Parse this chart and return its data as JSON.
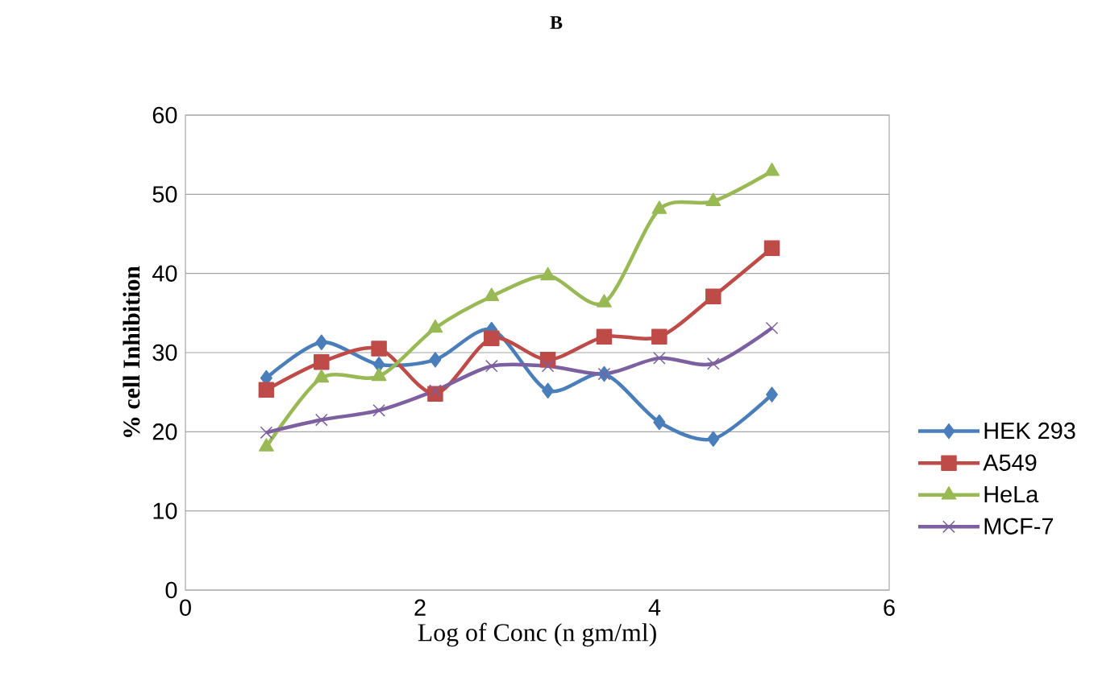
{
  "chart_data": {
    "type": "line",
    "title": "B",
    "xlabel": "Log of Conc (n gm/ml)",
    "ylabel": "% cell Inhibition",
    "x": [
      0.69,
      1.16,
      1.65,
      2.13,
      2.61,
      3.09,
      3.57,
      4.04,
      4.5,
      5.0
    ],
    "series": [
      {
        "name": "HEK 293",
        "color": "#4a7ebb",
        "marker": "diamond",
        "values": [
          26.8,
          31.3,
          28.5,
          29.1,
          32.9,
          25.2,
          27.3,
          21.2,
          19.1,
          24.7
        ]
      },
      {
        "name": "A549",
        "color": "#be4b48",
        "marker": "square",
        "values": [
          25.3,
          28.8,
          30.5,
          24.8,
          31.8,
          29.1,
          32.0,
          32.0,
          37.1,
          43.2
        ]
      },
      {
        "name": "HeLa",
        "color": "#98b954",
        "marker": "triangle",
        "values": [
          18.1,
          26.8,
          27.0,
          33.1,
          37.1,
          39.7,
          36.3,
          48.1,
          49.1,
          52.9
        ]
      },
      {
        "name": "MCF-7",
        "color": "#7d60a0",
        "marker": "cross",
        "values": [
          19.9,
          21.5,
          22.7,
          25.2,
          28.3,
          28.3,
          27.3,
          29.3,
          28.6,
          33.1
        ]
      }
    ],
    "xlim": [
      0,
      6
    ],
    "xticks": [
      0,
      2,
      4,
      6
    ],
    "ylim": [
      0,
      60
    ],
    "yticks": [
      0,
      10,
      20,
      30,
      40,
      50,
      60
    ],
    "grid": "y",
    "legend": "right"
  }
}
